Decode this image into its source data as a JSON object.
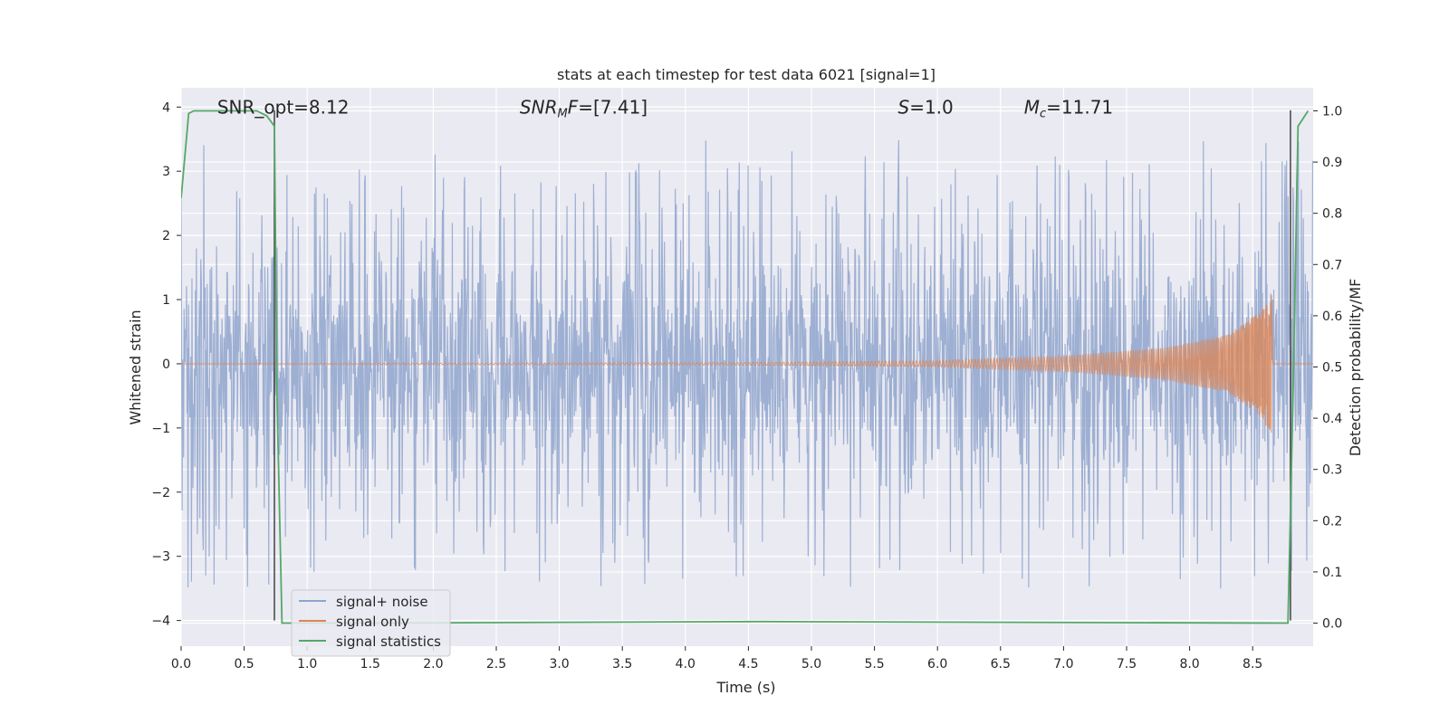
{
  "chart_data": {
    "type": "line",
    "title": "stats at each timestep for test data 6021 [signal=1]",
    "xlabel": "Time (s)",
    "ylabel": "Whitened strain",
    "ylabel_right": "Detection probability/MF",
    "xlim": [
      0.0,
      8.98
    ],
    "ylim": [
      -4.4,
      4.3
    ],
    "ylim_right": [
      -0.045,
      1.045
    ],
    "grid": true,
    "legend_position": "lower-left",
    "x_ticks": [
      "0.0",
      "0.5",
      "1.0",
      "1.5",
      "2.0",
      "2.5",
      "3.0",
      "3.5",
      "4.0",
      "4.5",
      "5.0",
      "5.5",
      "6.0",
      "6.5",
      "7.0",
      "7.5",
      "8.0",
      "8.5"
    ],
    "y_ticks": [
      "4",
      "3",
      "2",
      "1",
      "0",
      "−1",
      "−2",
      "−3",
      "−4"
    ],
    "y_ticks_right": [
      "1.0",
      "0.9",
      "0.8",
      "0.7",
      "0.6",
      "0.5",
      "0.4",
      "0.3",
      "0.2",
      "0.1",
      "0.0"
    ],
    "annotations": [
      {
        "text": "SNR_opt=8.12",
        "x": 0.2,
        "y": 4.0
      },
      {
        "text": "SNR_MF=[7.41]",
        "x": 2.6,
        "y": 4.0
      },
      {
        "text": "S=1.0",
        "x": 5.6,
        "y": 4.0
      },
      {
        "text": "M_c=11.71",
        "x": 6.6,
        "y": 4.0
      }
    ],
    "series": [
      {
        "name": "signal+ noise",
        "color": "#8fa4cd",
        "axis": "left",
        "description": "noisy whitened strain, spread roughly ±1.5 with spikes up to about ±3.9",
        "peaks": {
          "max": 3.92,
          "min": -4.0
        }
      },
      {
        "name": "signal only",
        "color": "#dd8452",
        "axis": "left",
        "description": "chirp signal growing from near 0 to about ±1.1 near 8.65 s",
        "x": [
          0.0,
          4.5,
          6.0,
          7.0,
          7.8,
          8.3,
          8.55,
          8.65,
          8.66
        ],
        "envelope": [
          0.0,
          0.02,
          0.05,
          0.12,
          0.25,
          0.45,
          0.8,
          1.1,
          0.0
        ]
      },
      {
        "name": "signal statistics",
        "color": "#55a868",
        "axis": "right",
        "x": [
          0.0,
          0.06,
          0.1,
          0.2,
          0.6,
          0.68,
          0.74,
          0.76,
          0.8,
          1.5,
          4.6,
          8.78,
          8.82,
          8.86,
          8.94
        ],
        "y": [
          0.83,
          0.995,
          1.0,
          1.0,
          1.0,
          0.99,
          0.97,
          0.45,
          0.0,
          0.0,
          0.003,
          0.0,
          0.44,
          0.97,
          1.0
        ]
      }
    ],
    "vertical_lines": [
      {
        "x": 0.74,
        "y": [
          -4.0,
          3.95
        ],
        "color": "#444444"
      },
      {
        "x": 8.8,
        "y": [
          -4.0,
          3.95
        ],
        "color": "#444444"
      }
    ]
  }
}
